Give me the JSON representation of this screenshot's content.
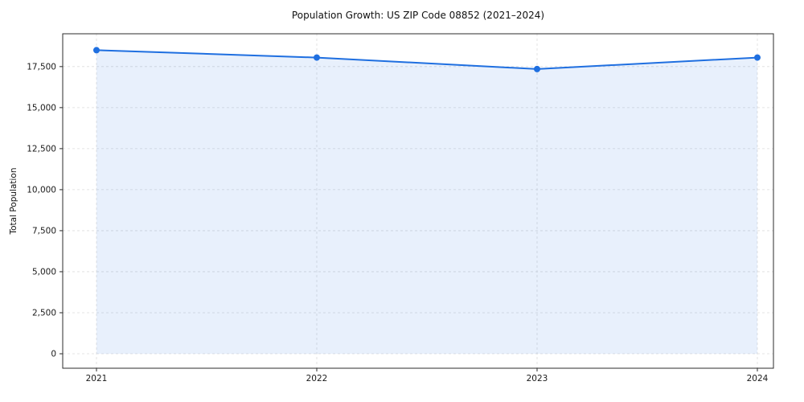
{
  "chart_data": {
    "type": "line",
    "title": "Population Growth: US ZIP Code 08852 (2021–2024)",
    "ylabel": "Total Population",
    "xlabel": "",
    "categories": [
      "2021",
      "2022",
      "2023",
      "2024"
    ],
    "series": [
      {
        "name": "Total Population",
        "values": [
          18500,
          18050,
          17350,
          18050
        ]
      }
    ],
    "yticks": [
      0,
      2500,
      5000,
      7500,
      10000,
      12500,
      15000,
      17500
    ],
    "ylim": [
      0,
      19500
    ],
    "grid": true,
    "grid_style": "dashed",
    "legend": "none",
    "line_color": "#1f6fe0",
    "marker_color": "#1f6fe0",
    "fill_color": "rgba(31,111,224,0.10)",
    "grid_color": "#dcdcdc",
    "spine_color": "#2b2b2b",
    "text_color": "#1a1a1a",
    "marker": "circle"
  }
}
